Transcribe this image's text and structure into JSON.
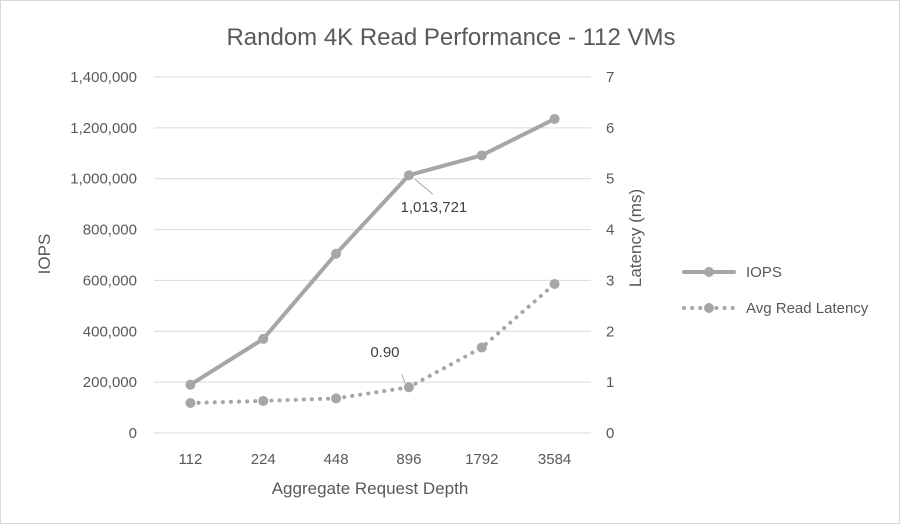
{
  "chart_data": {
    "type": "line",
    "title": "Random 4K Read Performance - 112 VMs",
    "xlabel": "Aggregate Request Depth",
    "ylabel": "IOPS",
    "y2label": "Latency (ms)",
    "categories": [
      "112",
      "224",
      "448",
      "896",
      "1792",
      "3584"
    ],
    "ylim": [
      0,
      1400000
    ],
    "y_ticks": [
      0,
      200000,
      400000,
      600000,
      800000,
      1000000,
      1200000,
      1400000
    ],
    "y_tick_labels": [
      "0",
      "200,000",
      "400,000",
      "600,000",
      "800,000",
      "1,000,000",
      "1,200,000",
      "1,400,000"
    ],
    "y2lim": [
      0,
      7
    ],
    "y2_ticks": [
      0,
      1,
      2,
      3,
      4,
      5,
      6,
      7
    ],
    "y2_tick_labels": [
      "0",
      "1",
      "2",
      "3",
      "4",
      "5",
      "6",
      "7"
    ],
    "grid": true,
    "legend_position": "right",
    "series": [
      {
        "name": "IOPS",
        "axis": "left",
        "style": "solid",
        "color": "#a6a6a6",
        "values": [
          190000,
          370000,
          705000,
          1013721,
          1092000,
          1235000
        ]
      },
      {
        "name": "Avg Read Latency",
        "axis": "right",
        "style": "dotted",
        "color": "#a6a6a6",
        "values": [
          0.59,
          0.63,
          0.68,
          0.9,
          1.68,
          2.93
        ]
      }
    ],
    "annotations": [
      {
        "series": 0,
        "index": 3,
        "text": "1,013,721"
      },
      {
        "series": 1,
        "index": 3,
        "text": "0.90"
      }
    ]
  }
}
